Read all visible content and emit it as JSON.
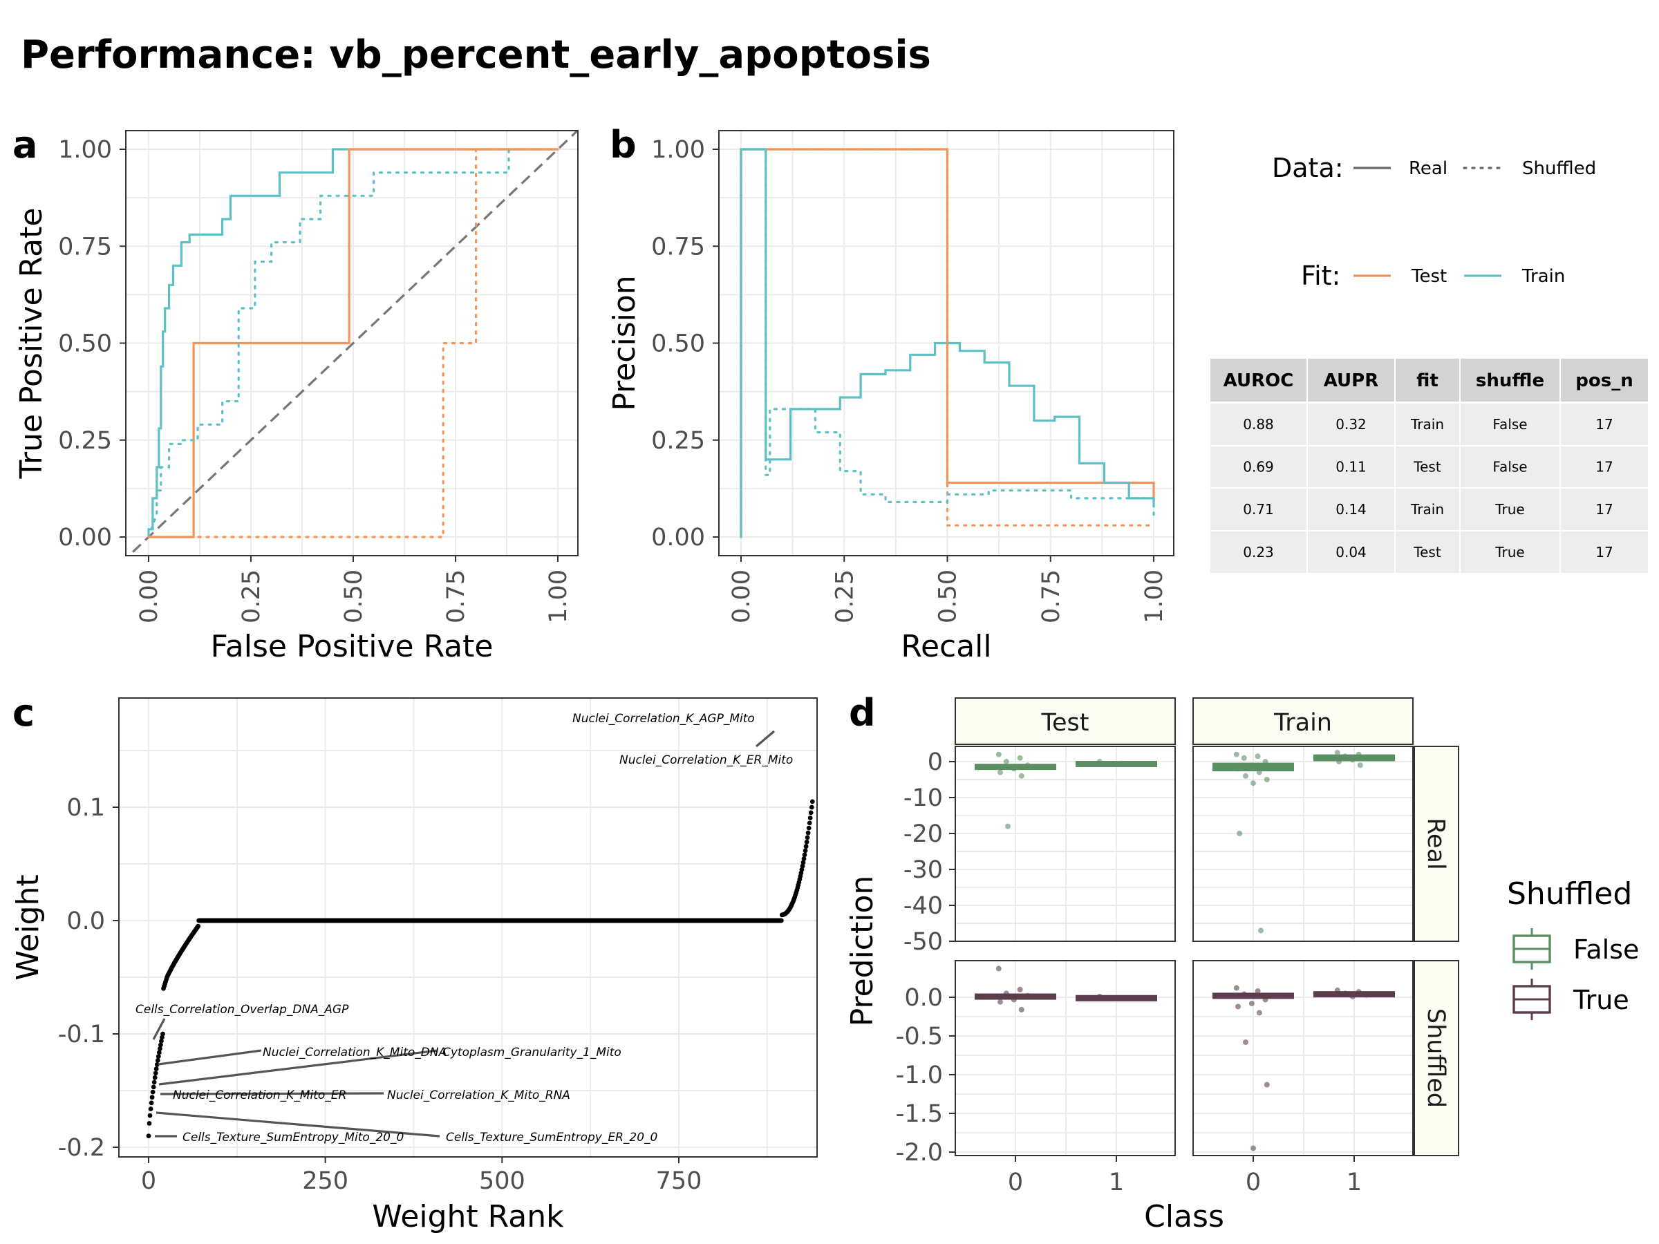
{
  "title": "Performance: vb_percent_early_apoptosis",
  "colors": {
    "test": "#F4935A",
    "train": "#5CC0C5",
    "grid": "#EBEBEB",
    "panel_border": "#333333",
    "shuffled_false": "#5A8F63",
    "shuffled_true": "#5C3D4E",
    "strip_bg": "#FCFDF2",
    "table_header": "#D3D3D3",
    "table_row": "#EDEDED",
    "diagonal": "#777777",
    "weight_points": "#000000"
  },
  "legend": {
    "data_title": "Data:",
    "data_items": [
      "Real",
      "Shuffled"
    ],
    "fit_title": "Fit:",
    "fit_items": [
      "Test",
      "Train"
    ]
  },
  "table": {
    "headers": [
      "AUROC",
      "AUPR",
      "fit",
      "shuffle",
      "pos_n"
    ],
    "rows": [
      [
        "0.88",
        "0.32",
        "Train",
        "False",
        "17"
      ],
      [
        "0.69",
        "0.11",
        "Test",
        "False",
        "17"
      ],
      [
        "0.71",
        "0.14",
        "Train",
        "True",
        "17"
      ],
      [
        "0.23",
        "0.04",
        "Test",
        "True",
        "17"
      ]
    ]
  },
  "chart_data": [
    {
      "panel": "a",
      "type": "line",
      "xlabel": "False Positive Rate",
      "ylabel": "True Positive Rate",
      "xlim": [
        0,
        1
      ],
      "ylim": [
        0,
        1
      ],
      "xticks": [
        "0.00",
        "0.25",
        "0.50",
        "0.75",
        "1.00"
      ],
      "yticks": [
        "0.00",
        "0.25",
        "0.50",
        "0.75",
        "1.00"
      ],
      "reference_line": "diagonal",
      "series": [
        {
          "fit": "Train",
          "data": "Real",
          "x": [
            0,
            0,
            0.01,
            0.01,
            0.02,
            0.02,
            0.025,
            0.025,
            0.03,
            0.03,
            0.035,
            0.035,
            0.04,
            0.04,
            0.05,
            0.05,
            0.06,
            0.06,
            0.08,
            0.08,
            0.1,
            0.1,
            0.18,
            0.18,
            0.2,
            0.2,
            0.32,
            0.32,
            0.45,
            0.45,
            0.58,
            0.58,
            1.0
          ],
          "y": [
            0,
            0.02,
            0.02,
            0.1,
            0.1,
            0.18,
            0.18,
            0.28,
            0.28,
            0.44,
            0.44,
            0.53,
            0.53,
            0.59,
            0.59,
            0.65,
            0.65,
            0.7,
            0.7,
            0.76,
            0.76,
            0.78,
            0.78,
            0.82,
            0.82,
            0.88,
            0.88,
            0.94,
            0.94,
            1.0,
            1.0,
            1.0,
            1.0
          ]
        },
        {
          "fit": "Test",
          "data": "Real",
          "x": [
            0,
            0.11,
            0.11,
            0.49,
            0.49,
            0.55,
            1.0
          ],
          "y": [
            0,
            0,
            0.5,
            0.5,
            1.0,
            1.0,
            1.0
          ]
        },
        {
          "fit": "Train",
          "data": "Shuffled",
          "x": [
            0,
            0.02,
            0.02,
            0.03,
            0.03,
            0.05,
            0.05,
            0.08,
            0.08,
            0.12,
            0.12,
            0.18,
            0.18,
            0.22,
            0.22,
            0.26,
            0.26,
            0.3,
            0.3,
            0.37,
            0.37,
            0.42,
            0.42,
            0.47,
            0.47,
            0.55,
            0.55,
            0.62,
            0.62,
            0.88,
            0.88
          ],
          "y": [
            0,
            0.06,
            0.12,
            0.12,
            0.18,
            0.18,
            0.24,
            0.24,
            0.25,
            0.25,
            0.29,
            0.29,
            0.35,
            0.35,
            0.59,
            0.59,
            0.71,
            0.71,
            0.76,
            0.76,
            0.82,
            0.82,
            0.88,
            0.88,
            0.88,
            0.88,
            0.94,
            0.94,
            0.94,
            0.94,
            1.0
          ]
        },
        {
          "fit": "Test",
          "data": "Shuffled",
          "x": [
            0,
            0.72,
            0.72,
            0.8,
            0.8,
            1.0
          ],
          "y": [
            0,
            0,
            0.5,
            0.5,
            1.0,
            1.0
          ]
        }
      ]
    },
    {
      "panel": "b",
      "type": "line",
      "xlabel": "Recall",
      "ylabel": "Precision",
      "xlim": [
        0,
        1
      ],
      "ylim": [
        0,
        1
      ],
      "xticks": [
        "0.00",
        "0.25",
        "0.50",
        "0.75",
        "1.00"
      ],
      "yticks": [
        "0.00",
        "0.25",
        "0.50",
        "0.75",
        "1.00"
      ],
      "series": [
        {
          "fit": "Test",
          "data": "Real",
          "x": [
            0,
            0,
            0.5,
            0.5,
            1.0,
            1.0
          ],
          "y": [
            0,
            1.0,
            1.0,
            0.14,
            0.14,
            0.09
          ]
        },
        {
          "fit": "Train",
          "data": "Real",
          "x": [
            0,
            0,
            0.06,
            0.06,
            0.12,
            0.12,
            0.24,
            0.24,
            0.29,
            0.29,
            0.35,
            0.35,
            0.41,
            0.41,
            0.47,
            0.47,
            0.53,
            0.53,
            0.59,
            0.59,
            0.65,
            0.65,
            0.71,
            0.71,
            0.76,
            0.76,
            0.82,
            0.82,
            0.88,
            0.88,
            0.94,
            0.94,
            1.0,
            1.0
          ],
          "y": [
            0,
            1.0,
            1.0,
            0.2,
            0.2,
            0.33,
            0.33,
            0.36,
            0.36,
            0.42,
            0.42,
            0.43,
            0.43,
            0.47,
            0.47,
            0.5,
            0.5,
            0.48,
            0.48,
            0.45,
            0.45,
            0.39,
            0.39,
            0.3,
            0.3,
            0.31,
            0.31,
            0.19,
            0.19,
            0.14,
            0.14,
            0.1,
            0.1,
            0.08
          ]
        },
        {
          "fit": "Test",
          "data": "Shuffled",
          "x": [
            0,
            0,
            0.5,
            0.5,
            1.0
          ],
          "y": [
            0,
            1.0,
            1.0,
            0.03,
            0.03
          ]
        },
        {
          "fit": "Train",
          "data": "Shuffled",
          "x": [
            0,
            0,
            0.06,
            0.06,
            0.07,
            0.07,
            0.18,
            0.18,
            0.24,
            0.24,
            0.29,
            0.29,
            0.35,
            0.35,
            0.41,
            0.41,
            0.5,
            0.5,
            0.6,
            0.6,
            0.8,
            0.8,
            1.0,
            1.0
          ],
          "y": [
            0,
            1.0,
            1.0,
            0.16,
            0.16,
            0.33,
            0.33,
            0.27,
            0.27,
            0.17,
            0.17,
            0.11,
            0.11,
            0.09,
            0.09,
            0.09,
            0.09,
            0.11,
            0.11,
            0.12,
            0.12,
            0.1,
            0.1,
            0.05
          ]
        }
      ]
    },
    {
      "panel": "c",
      "type": "scatter",
      "xlabel": "Weight Rank",
      "ylabel": "Weight",
      "xlim": [
        -85,
        985
      ],
      "ylim": [
        -0.21,
        0.195
      ],
      "xticks": [
        0,
        250,
        500,
        750
      ],
      "yticks": [
        -0.2,
        -0.1,
        0.0,
        0.1
      ],
      "ytick_labels": [
        "-0.2",
        "-0.1",
        "0.0",
        "0.1"
      ],
      "n_points": 940,
      "segments": [
        {
          "rank": [
            0,
            20
          ],
          "weight": [
            -0.19,
            -0.1
          ]
        },
        {
          "rank": [
            20,
            70
          ],
          "weight": [
            -0.06,
            -0.005
          ]
        },
        {
          "rank": [
            70,
            895
          ],
          "weight": [
            0.0,
            0.0
          ]
        },
        {
          "rank": [
            895,
            940
          ],
          "weight": [
            0.005,
            0.11
          ]
        }
      ],
      "labeled_points": [
        {
          "label": "Nuclei_Correlation_K_AGP_Mito",
          "rank": 938,
          "weight": 0.178
        },
        {
          "label": "Nuclei_Correlation_K_ER_Mito",
          "rank": 936,
          "weight": 0.165
        },
        {
          "label": "Cells_Correlation_Overlap_DNA_AGP",
          "rank": 16,
          "weight": -0.105
        },
        {
          "label": "Nuclei_Correlation_K_Mito_DNA",
          "rank": 10,
          "weight": -0.128
        },
        {
          "label": "Cytoplasm_Granularity_1_Mito",
          "rank": 6,
          "weight": -0.148
        },
        {
          "label": "Nuclei_Correlation_K_Mito_ER",
          "rank": 4,
          "weight": -0.155
        },
        {
          "label": "Nuclei_Correlation_K_Mito_RNA",
          "rank": 3,
          "weight": -0.154
        },
        {
          "label": "Cells_Texture_SumEntropy_ER_20_0",
          "rank": 2,
          "weight": -0.17
        },
        {
          "label": "Cells_Texture_SumEntropy_Mito_20_0",
          "rank": 1,
          "weight": -0.19
        }
      ]
    },
    {
      "panel": "d",
      "type": "box",
      "xlabel": "Class",
      "ylabel": "Prediction",
      "facet_cols": [
        "Test",
        "Train"
      ],
      "facet_rows": [
        "Real",
        "Shuffled"
      ],
      "xticks": [
        "0",
        "1"
      ],
      "legend_title": "Shuffled",
      "legend_items": [
        "False",
        "True"
      ],
      "rows": {
        "Real": {
          "ylim": [
            -50,
            4
          ],
          "yticks": [
            0,
            -10,
            -20,
            -30,
            -40,
            -50
          ],
          "ytick_labels": [
            "0",
            "-10",
            "-20",
            "-30",
            "-40",
            "-50"
          ],
          "cells": {
            "Test": {
              "class0_box": [
                -1.5,
                -0.8
              ],
              "class0_points": [
                2,
                1,
                0,
                -1,
                -2,
                -3,
                -4,
                -18
              ],
              "class1_box": [
                -0.8,
                0.0
              ],
              "class1_points": [
                0,
                -0.5
              ]
            },
            "Train": {
              "class0_box": [
                -2.5,
                -0.5
              ],
              "class0_points": [
                2,
                1.5,
                1,
                0,
                -1,
                -2,
                -3,
                -4,
                -5,
                -6,
                -20,
                -47
              ],
              "class1_box": [
                0.3,
                1.8
              ],
              "class1_points": [
                2.5,
                2,
                1.5,
                1,
                0.5,
                0,
                -1
              ]
            }
          }
        },
        "Shuffled": {
          "ylim": [
            -2.05,
            0.4
          ],
          "yticks": [
            0.0,
            -0.5,
            -1.0,
            -1.5,
            -2.0
          ],
          "ytick_labels": [
            "0.0",
            "-0.5",
            "-1.0",
            "-1.5",
            "-2.0"
          ],
          "cells": {
            "Test": {
              "class0_box": [
                0.0,
                0.04
              ],
              "class0_points": [
                0.37,
                0.1,
                0.05,
                0.02,
                -0.03,
                -0.06,
                -0.16
              ],
              "class1_box": [
                0.0,
                0.02
              ],
              "class1_points": [
                0.01
              ]
            },
            "Train": {
              "class0_box": [
                -0.01,
                0.05
              ],
              "class0_points": [
                0.12,
                0.08,
                0.04,
                -0.03,
                -0.08,
                -0.12,
                -0.2,
                -0.58,
                -1.13,
                -1.95
              ],
              "class1_box": [
                0.03,
                0.07
              ],
              "class1_points": [
                0.09,
                0.07,
                0.05,
                0.03,
                0.01
              ]
            }
          }
        }
      }
    }
  ]
}
